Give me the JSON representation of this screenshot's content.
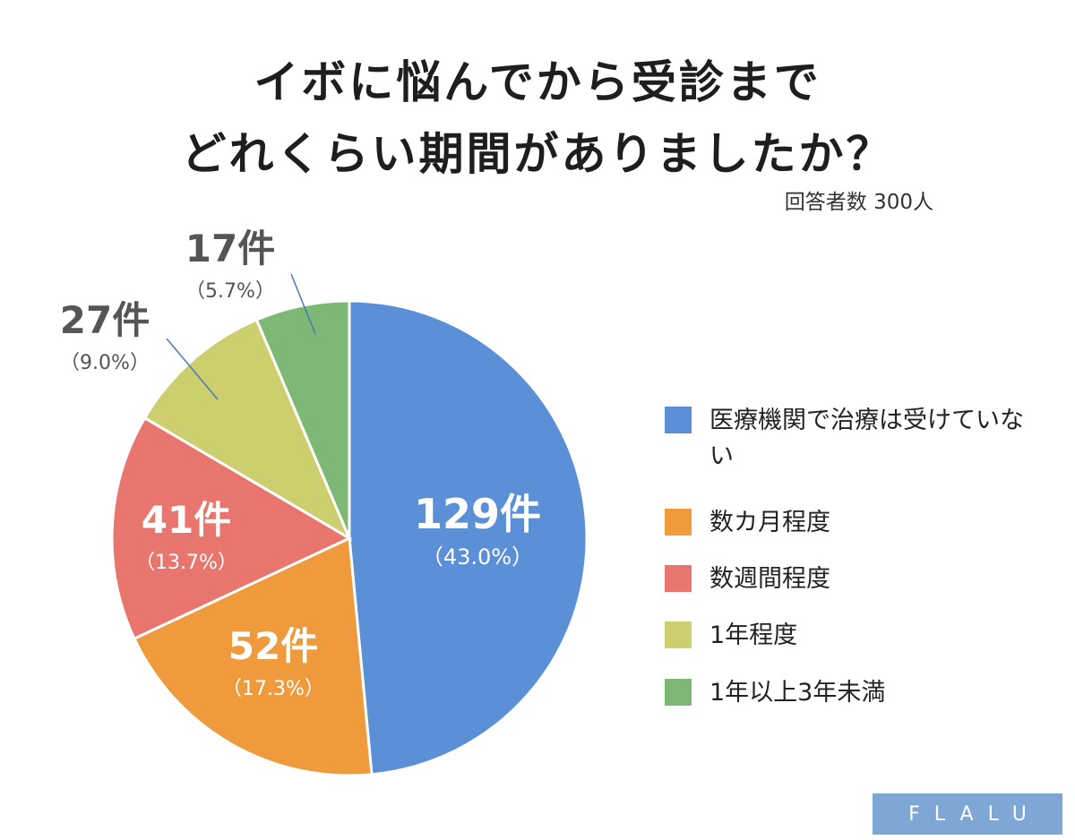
{
  "chart_data": {
    "type": "pie",
    "title": "イボに悩んでから受診まで\nどれくらい期間がありましたか？",
    "subtitle": "回答者数 300人",
    "total": 300,
    "legend_position": "right",
    "slices": [
      {
        "name": "医療機関で治療は受けていない",
        "count_label": "129件",
        "percent_label": "（43.0%）",
        "value": 129,
        "percent": 43.0,
        "color": "#5b8fd6"
      },
      {
        "name": "数カ月程度",
        "count_label": "52件",
        "percent_label": "（17.3%）",
        "value": 52,
        "percent": 17.3,
        "color": "#ef9a3c"
      },
      {
        "name": "数週間程度",
        "count_label": "41件",
        "percent_label": "（13.7%）",
        "value": 41,
        "percent": 13.7,
        "color": "#e8756e"
      },
      {
        "name": "1年程度",
        "count_label": "27件",
        "percent_label": "（9.0%）",
        "value": 27,
        "percent": 9.0,
        "color": "#cdce6e"
      },
      {
        "name": "1年以上3年未満",
        "count_label": "17件",
        "percent_label": "（5.7%）",
        "value": 17,
        "percent": 5.7,
        "color": "#7db874"
      }
    ]
  },
  "title_lines": [
    "イボに悩んでから受診まで",
    "どれくらい期間がありましたか？"
  ],
  "respondents": "回答者数 300人",
  "legend": [
    {
      "label": "医療機関で治療は受けていない",
      "color": "#5b8fd6"
    },
    {
      "label": "数カ月程度",
      "color": "#ef9a3c"
    },
    {
      "label": "数週間程度",
      "color": "#e8756e"
    },
    {
      "label": "1年程度",
      "color": "#cdce6e"
    },
    {
      "label": "1年以上3年未満",
      "color": "#7db874"
    }
  ],
  "logo": {
    "text": "FLALU"
  }
}
